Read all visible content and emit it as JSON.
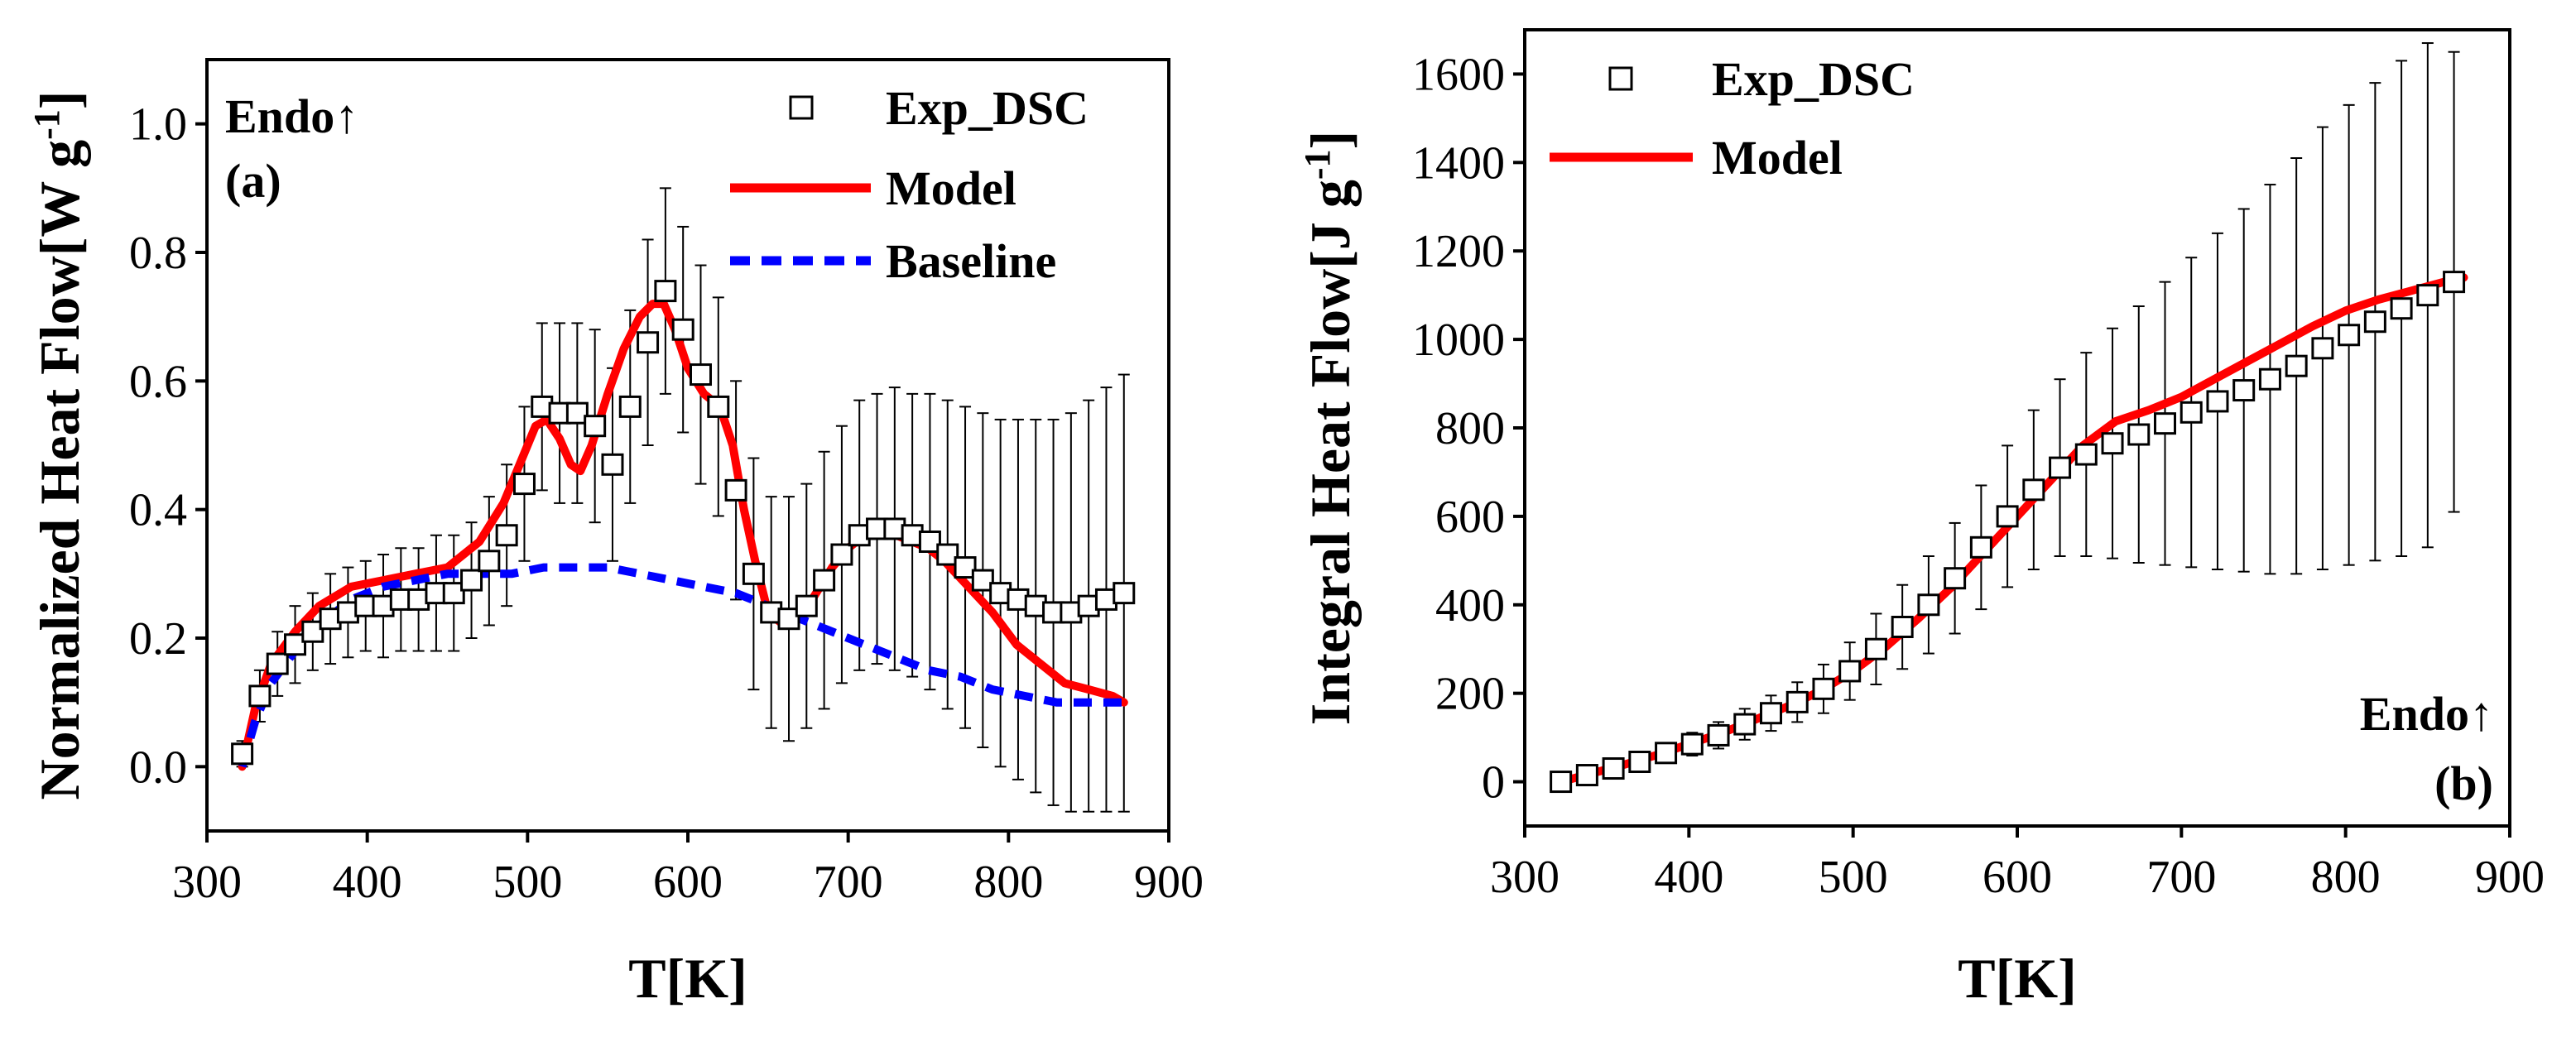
{
  "chart_data": [
    {
      "panel": "(a)",
      "type": "scatter",
      "annotation": "Endo↑",
      "xlabel": "T[K]",
      "ylabel": "Normalized Heat Flow[W g-1]",
      "ylabel_main": "Normalized Heat Flow[W g",
      "ylabel_sup": "-1",
      "ylabel_end": "]",
      "xlim": [
        300,
        900
      ],
      "ylim": [
        -0.1,
        1.1
      ],
      "xticks": [
        300,
        400,
        500,
        600,
        700,
        800,
        900
      ],
      "yticks": [
        0.0,
        0.2,
        0.4,
        0.6,
        0.8,
        1.0
      ],
      "ytick_labels": [
        "0.0",
        "0.2",
        "0.4",
        "0.6",
        "0.8",
        "1.0"
      ],
      "legend": [
        "Exp_DSC",
        "Model",
        "Baseline"
      ],
      "series": [
        {
          "name": "Exp_DSC",
          "style": "open-square",
          "color": "#000000",
          "x": [
            322,
            333,
            344,
            355,
            366,
            377,
            388,
            399,
            410,
            421,
            432,
            443,
            454,
            465,
            476,
            487,
            498,
            509,
            520,
            531,
            542,
            553,
            564,
            575,
            586,
            597,
            608,
            619,
            630,
            641,
            652,
            663,
            674,
            685,
            696,
            707,
            718,
            729,
            740,
            751,
            762,
            773,
            784,
            795,
            806,
            817,
            828,
            839,
            850,
            861,
            872
          ],
          "y": [
            0.02,
            0.11,
            0.16,
            0.19,
            0.21,
            0.23,
            0.24,
            0.25,
            0.25,
            0.26,
            0.26,
            0.27,
            0.27,
            0.29,
            0.32,
            0.36,
            0.44,
            0.56,
            0.55,
            0.55,
            0.53,
            0.47,
            0.56,
            0.66,
            0.74,
            0.68,
            0.61,
            0.56,
            0.43,
            0.3,
            0.24,
            0.23,
            0.25,
            0.29,
            0.33,
            0.36,
            0.37,
            0.37,
            0.36,
            0.35,
            0.33,
            0.31,
            0.29,
            0.27,
            0.26,
            0.25,
            0.24,
            0.24,
            0.25,
            0.26,
            0.27
          ],
          "err": [
            0.02,
            0.04,
            0.05,
            0.06,
            0.06,
            0.07,
            0.07,
            0.07,
            0.08,
            0.08,
            0.08,
            0.09,
            0.09,
            0.09,
            0.1,
            0.11,
            0.12,
            0.13,
            0.14,
            0.14,
            0.15,
            0.15,
            0.15,
            0.16,
            0.16,
            0.16,
            0.17,
            0.17,
            0.17,
            0.18,
            0.18,
            0.19,
            0.19,
            0.2,
            0.2,
            0.21,
            0.21,
            0.22,
            0.22,
            0.23,
            0.24,
            0.25,
            0.26,
            0.27,
            0.28,
            0.29,
            0.3,
            0.31,
            0.32,
            0.33,
            0.34
          ]
        },
        {
          "name": "Model",
          "style": "line",
          "color": "#ff0000",
          "x": [
            322,
            330,
            340,
            355,
            370,
            390,
            410,
            430,
            450,
            470,
            485,
            495,
            505,
            512,
            520,
            527,
            533,
            540,
            550,
            560,
            570,
            578,
            585,
            592,
            600,
            610,
            620,
            628,
            635,
            642,
            650,
            660,
            670,
            680,
            690,
            700,
            710,
            720,
            730,
            740,
            750,
            760,
            775,
            790,
            805,
            820,
            835,
            850,
            865,
            872
          ],
          "y": [
            0.0,
            0.09,
            0.16,
            0.21,
            0.25,
            0.28,
            0.29,
            0.3,
            0.31,
            0.35,
            0.41,
            0.47,
            0.53,
            0.54,
            0.51,
            0.47,
            0.46,
            0.5,
            0.58,
            0.65,
            0.7,
            0.72,
            0.72,
            0.68,
            0.62,
            0.58,
            0.56,
            0.5,
            0.4,
            0.32,
            0.24,
            0.22,
            0.23,
            0.27,
            0.31,
            0.34,
            0.36,
            0.36,
            0.36,
            0.35,
            0.34,
            0.32,
            0.28,
            0.24,
            0.19,
            0.16,
            0.13,
            0.12,
            0.11,
            0.1
          ]
        },
        {
          "name": "Baseline",
          "style": "dashed",
          "color": "#0000ff",
          "x": [
            322,
            330,
            340,
            355,
            370,
            390,
            410,
            430,
            450,
            470,
            490,
            510,
            530,
            550,
            570,
            590,
            610,
            630,
            650,
            670,
            690,
            710,
            730,
            750,
            770,
            790,
            810,
            830,
            850,
            872
          ],
          "y": [
            0.0,
            0.07,
            0.13,
            0.18,
            0.22,
            0.26,
            0.28,
            0.29,
            0.3,
            0.3,
            0.3,
            0.31,
            0.31,
            0.31,
            0.3,
            0.29,
            0.28,
            0.27,
            0.25,
            0.23,
            0.21,
            0.19,
            0.17,
            0.15,
            0.14,
            0.12,
            0.11,
            0.1,
            0.1,
            0.1
          ]
        }
      ]
    },
    {
      "panel": "(b)",
      "type": "scatter",
      "annotation": "Endo↑",
      "xlabel": "T[K]",
      "ylabel": "Integral Heat Flow[J g-1]",
      "ylabel_main": "Integral Heat Flow[J g",
      "ylabel_sup": "-1",
      "ylabel_end": "]",
      "xlim": [
        300,
        900
      ],
      "ylim": [
        -100,
        1700
      ],
      "xticks": [
        300,
        400,
        500,
        600,
        700,
        800,
        900
      ],
      "yticks": [
        0,
        200,
        400,
        600,
        800,
        1000,
        1200,
        1400,
        1600
      ],
      "ytick_labels": [
        "0",
        "200",
        "400",
        "600",
        "800",
        "1000",
        "1200",
        "1400",
        "1600"
      ],
      "legend": [
        "Exp_DSC",
        "Model"
      ],
      "series": [
        {
          "name": "Exp_DSC",
          "style": "open-square",
          "color": "#000000",
          "x": [
            322,
            338,
            354,
            370,
            386,
            402,
            418,
            434,
            450,
            466,
            482,
            498,
            514,
            530,
            546,
            562,
            578,
            594,
            610,
            626,
            642,
            658,
            674,
            690,
            706,
            722,
            738,
            754,
            770,
            786,
            802,
            818,
            834,
            850,
            866
          ],
          "y": [
            0,
            15,
            30,
            45,
            65,
            85,
            105,
            130,
            155,
            180,
            210,
            250,
            300,
            350,
            400,
            460,
            530,
            600,
            660,
            710,
            740,
            765,
            785,
            810,
            835,
            860,
            885,
            910,
            940,
            980,
            1010,
            1040,
            1070,
            1100,
            1130
          ],
          "err": [
            10,
            12,
            15,
            18,
            22,
            26,
            30,
            35,
            40,
            45,
            55,
            65,
            80,
            95,
            110,
            125,
            140,
            160,
            180,
            200,
            230,
            260,
            290,
            320,
            350,
            380,
            410,
            440,
            470,
            500,
            520,
            540,
            560,
            570,
            520
          ]
        },
        {
          "name": "Model",
          "style": "line",
          "color": "#ff0000",
          "x": [
            322,
            340,
            360,
            380,
            400,
            420,
            440,
            460,
            480,
            500,
            520,
            540,
            560,
            580,
            600,
            620,
            640,
            660,
            680,
            700,
            720,
            740,
            760,
            780,
            800,
            820,
            840,
            860,
            872
          ],
          "y": [
            0,
            18,
            38,
            60,
            85,
            110,
            140,
            170,
            205,
            250,
            305,
            370,
            440,
            520,
            600,
            680,
            760,
            815,
            840,
            870,
            910,
            950,
            990,
            1030,
            1065,
            1090,
            1110,
            1130,
            1140
          ]
        }
      ]
    }
  ]
}
